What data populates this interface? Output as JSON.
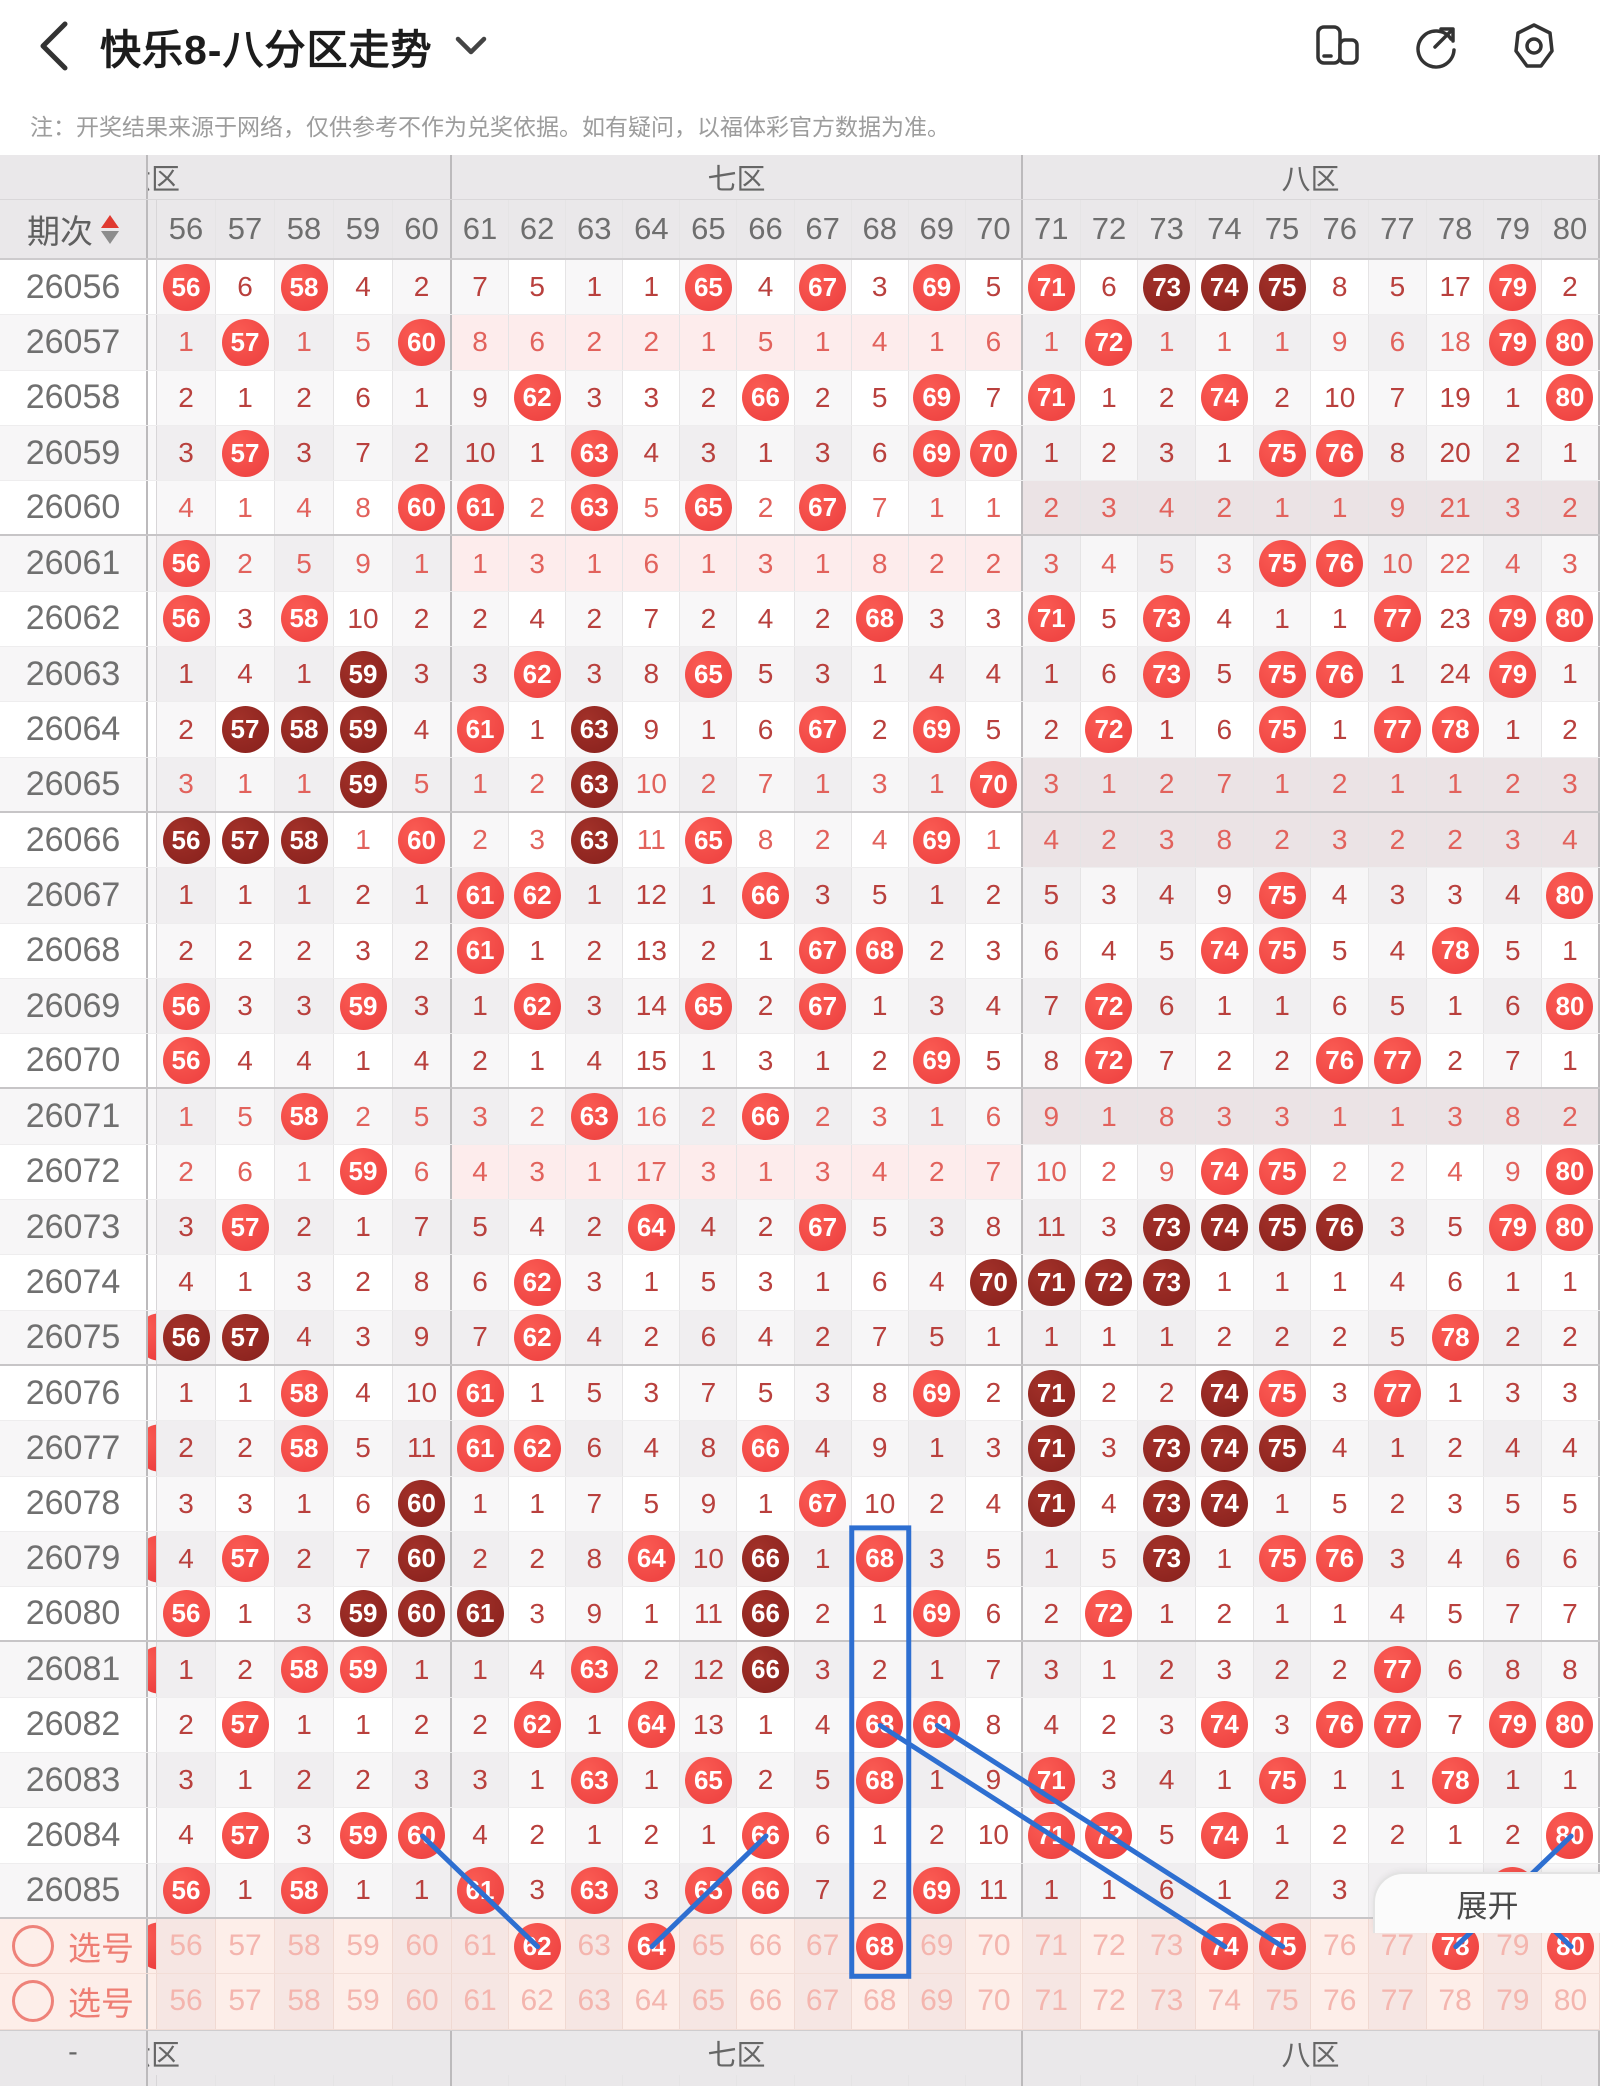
{
  "nav": {
    "title": "快乐8-八分区走势",
    "back_icon": "chevron-left",
    "dropdown_icon": "chevron-down",
    "right_icons": [
      "landscape-rotate-icon",
      "share-icon",
      "settings-icon"
    ]
  },
  "note": "注：开奖结果来源于网络，仅供参考不作为兑奖依据。如有疑问，以福体彩官方数据为准。",
  "colors": {
    "ball_red": "#ec3e3e",
    "ball_dark_red": "#87201c",
    "count_red": "#b9403d",
    "pick_pink": "#ee7d73",
    "annotation_blue": "#2e6fd1",
    "header_gray": "#eae8ea"
  },
  "table": {
    "period_header": "期次",
    "zones": [
      {
        "label": "六区",
        "clipped": true,
        "cols": [
          "56",
          "57",
          "58",
          "59",
          "60"
        ]
      },
      {
        "label": "七区",
        "clipped": false,
        "cols": [
          "61",
          "62",
          "63",
          "64",
          "65",
          "66",
          "67",
          "68",
          "69",
          "70"
        ]
      },
      {
        "label": "八区",
        "clipped": false,
        "cols": [
          "71",
          "72",
          "73",
          "74",
          "75",
          "76",
          "77",
          "78",
          "79",
          "80"
        ]
      }
    ],
    "rows": [
      {
        "id": "26056",
        "tint": null,
        "sliver": false,
        "cells": [
          "B56",
          "6",
          "B58",
          "4",
          "2",
          "7",
          "5",
          "1",
          "1",
          "B65",
          "4",
          "B67",
          "3",
          "B69",
          "5",
          "B71",
          "6",
          "D73",
          "D74",
          "D75",
          "8",
          "5",
          "17",
          "B79",
          "2"
        ]
      },
      {
        "id": "26057",
        "tint": "seven",
        "sliver": false,
        "cells": [
          "1",
          "B57",
          "1",
          "5",
          "B60",
          "8",
          "6",
          "2",
          "2",
          "1",
          "5",
          "1",
          "4",
          "1",
          "6",
          "1",
          "B72",
          "1",
          "1",
          "1",
          "9",
          "6",
          "18",
          "B79",
          "B80"
        ]
      },
      {
        "id": "26058",
        "tint": null,
        "sliver": false,
        "cells": [
          "2",
          "1",
          "2",
          "6",
          "1",
          "9",
          "B62",
          "3",
          "3",
          "2",
          "B66",
          "2",
          "5",
          "B69",
          "7",
          "B71",
          "1",
          "2",
          "B74",
          "2",
          "10",
          "7",
          "19",
          "1",
          "B80"
        ]
      },
      {
        "id": "26059",
        "tint": null,
        "sliver": false,
        "cells": [
          "3",
          "B57",
          "3",
          "7",
          "2",
          "10",
          "1",
          "B63",
          "4",
          "3",
          "1",
          "3",
          "6",
          "B69",
          "B70",
          "1",
          "2",
          "3",
          "1",
          "B75",
          "B76",
          "8",
          "20",
          "2",
          "1"
        ]
      },
      {
        "id": "26060",
        "tint": "eight",
        "sliver": false,
        "cells": [
          "4",
          "1",
          "4",
          "8",
          "B60",
          "B61",
          "2",
          "B63",
          "5",
          "B65",
          "2",
          "B67",
          "7",
          "1",
          "1",
          "2",
          "3",
          "4",
          "2",
          "1",
          "1",
          "9",
          "21",
          "3",
          "2"
        ]
      },
      {
        "id": "26061",
        "tint": "seven",
        "sliver": false,
        "cells": [
          "B56",
          "2",
          "5",
          "9",
          "1",
          "1",
          "3",
          "1",
          "6",
          "1",
          "3",
          "1",
          "8",
          "2",
          "2",
          "3",
          "4",
          "5",
          "3",
          "B75",
          "B76",
          "10",
          "22",
          "4",
          "3"
        ]
      },
      {
        "id": "26062",
        "tint": null,
        "sliver": false,
        "cells": [
          "B56",
          "3",
          "B58",
          "10",
          "2",
          "2",
          "4",
          "2",
          "7",
          "2",
          "4",
          "2",
          "B68",
          "3",
          "3",
          "B71",
          "5",
          "B73",
          "4",
          "1",
          "1",
          "B77",
          "23",
          "B79",
          "B80"
        ]
      },
      {
        "id": "26063",
        "tint": null,
        "sliver": false,
        "cells": [
          "1",
          "4",
          "1",
          "D59",
          "3",
          "3",
          "B62",
          "3",
          "8",
          "B65",
          "5",
          "3",
          "1",
          "4",
          "4",
          "1",
          "6",
          "B73",
          "5",
          "B75",
          "B76",
          "1",
          "24",
          "B79",
          "1"
        ]
      },
      {
        "id": "26064",
        "tint": null,
        "sliver": false,
        "cells": [
          "2",
          "D57",
          "D58",
          "D59",
          "4",
          "B61",
          "1",
          "D63",
          "9",
          "1",
          "6",
          "B67",
          "2",
          "B69",
          "5",
          "2",
          "B72",
          "1",
          "6",
          "B75",
          "1",
          "B77",
          "B78",
          "1",
          "2"
        ]
      },
      {
        "id": "26065",
        "tint": "eight",
        "sliver": false,
        "cells": [
          "3",
          "1",
          "1",
          "D59",
          "5",
          "1",
          "2",
          "D63",
          "10",
          "2",
          "7",
          "1",
          "3",
          "1",
          "B70",
          "3",
          "1",
          "2",
          "7",
          "1",
          "2",
          "1",
          "1",
          "2",
          "3"
        ]
      },
      {
        "id": "26066",
        "tint": "eight",
        "sliver": false,
        "cells": [
          "D56",
          "D57",
          "D58",
          "1",
          "B60",
          "2",
          "3",
          "D63",
          "11",
          "B65",
          "8",
          "2",
          "4",
          "B69",
          "1",
          "4",
          "2",
          "3",
          "8",
          "2",
          "3",
          "2",
          "2",
          "3",
          "4"
        ]
      },
      {
        "id": "26067",
        "tint": null,
        "sliver": false,
        "cells": [
          "1",
          "1",
          "1",
          "2",
          "1",
          "B61",
          "B62",
          "1",
          "12",
          "1",
          "B66",
          "3",
          "5",
          "1",
          "2",
          "5",
          "3",
          "4",
          "9",
          "B75",
          "4",
          "3",
          "3",
          "4",
          "B80"
        ]
      },
      {
        "id": "26068",
        "tint": null,
        "sliver": false,
        "cells": [
          "2",
          "2",
          "2",
          "3",
          "2",
          "B61",
          "1",
          "2",
          "13",
          "2",
          "1",
          "B67",
          "B68",
          "2",
          "3",
          "6",
          "4",
          "5",
          "B74",
          "B75",
          "5",
          "4",
          "B78",
          "5",
          "1"
        ]
      },
      {
        "id": "26069",
        "tint": null,
        "sliver": false,
        "cells": [
          "B56",
          "3",
          "3",
          "B59",
          "3",
          "1",
          "B62",
          "3",
          "14",
          "B65",
          "2",
          "B67",
          "1",
          "3",
          "4",
          "7",
          "B72",
          "6",
          "1",
          "1",
          "6",
          "5",
          "1",
          "6",
          "B80"
        ]
      },
      {
        "id": "26070",
        "tint": null,
        "sliver": false,
        "cells": [
          "B56",
          "4",
          "4",
          "1",
          "4",
          "2",
          "1",
          "4",
          "15",
          "1",
          "3",
          "1",
          "2",
          "B69",
          "5",
          "8",
          "B72",
          "7",
          "2",
          "2",
          "B76",
          "B77",
          "2",
          "7",
          "1"
        ]
      },
      {
        "id": "26071",
        "tint": "eight",
        "sliver": false,
        "cells": [
          "1",
          "5",
          "B58",
          "2",
          "5",
          "3",
          "2",
          "B63",
          "16",
          "2",
          "B66",
          "2",
          "3",
          "1",
          "6",
          "9",
          "1",
          "8",
          "3",
          "3",
          "1",
          "1",
          "3",
          "8",
          "2"
        ]
      },
      {
        "id": "26072",
        "tint": "seven",
        "sliver": false,
        "cells": [
          "2",
          "6",
          "1",
          "B59",
          "6",
          "4",
          "3",
          "1",
          "17",
          "3",
          "1",
          "3",
          "4",
          "2",
          "7",
          "10",
          "2",
          "9",
          "B74",
          "B75",
          "2",
          "2",
          "4",
          "9",
          "B80"
        ]
      },
      {
        "id": "26073",
        "tint": null,
        "sliver": false,
        "cells": [
          "3",
          "B57",
          "2",
          "1",
          "7",
          "5",
          "4",
          "2",
          "B64",
          "4",
          "2",
          "B67",
          "5",
          "3",
          "8",
          "11",
          "3",
          "D73",
          "D74",
          "D75",
          "D76",
          "3",
          "5",
          "B79",
          "B80"
        ]
      },
      {
        "id": "26074",
        "tint": null,
        "sliver": false,
        "cells": [
          "4",
          "1",
          "3",
          "2",
          "8",
          "6",
          "B62",
          "3",
          "1",
          "5",
          "3",
          "1",
          "6",
          "4",
          "D70",
          "D71",
          "D72",
          "D73",
          "1",
          "1",
          "1",
          "4",
          "6",
          "1",
          "1"
        ]
      },
      {
        "id": "26075",
        "tint": null,
        "sliver": true,
        "cells": [
          "D56",
          "D57",
          "4",
          "3",
          "9",
          "7",
          "B62",
          "4",
          "2",
          "6",
          "4",
          "2",
          "7",
          "5",
          "1",
          "1",
          "1",
          "1",
          "2",
          "2",
          "2",
          "5",
          "B78",
          "2",
          "2"
        ]
      },
      {
        "id": "26076",
        "tint": null,
        "sliver": false,
        "cells": [
          "1",
          "1",
          "B58",
          "4",
          "10",
          "B61",
          "1",
          "5",
          "3",
          "7",
          "5",
          "3",
          "8",
          "B69",
          "2",
          "D71",
          "2",
          "2",
          "D74",
          "B75",
          "3",
          "B77",
          "1",
          "3",
          "3"
        ]
      },
      {
        "id": "26077",
        "tint": null,
        "sliver": true,
        "cells": [
          "2",
          "2",
          "B58",
          "5",
          "11",
          "B61",
          "B62",
          "6",
          "4",
          "8",
          "B66",
          "4",
          "9",
          "1",
          "3",
          "D71",
          "3",
          "D73",
          "D74",
          "D75",
          "4",
          "1",
          "2",
          "4",
          "4"
        ]
      },
      {
        "id": "26078",
        "tint": null,
        "sliver": false,
        "cells": [
          "3",
          "3",
          "1",
          "6",
          "D60",
          "1",
          "1",
          "7",
          "5",
          "9",
          "1",
          "B67",
          "10",
          "2",
          "4",
          "D71",
          "4",
          "D73",
          "D74",
          "1",
          "5",
          "2",
          "3",
          "5",
          "5"
        ]
      },
      {
        "id": "26079",
        "tint": null,
        "sliver": true,
        "cells": [
          "4",
          "B57",
          "2",
          "7",
          "D60",
          "2",
          "2",
          "8",
          "B64",
          "10",
          "D66",
          "1",
          "B68",
          "3",
          "5",
          "1",
          "5",
          "D73",
          "1",
          "B75",
          "B76",
          "3",
          "4",
          "6",
          "6"
        ]
      },
      {
        "id": "26080",
        "tint": null,
        "sliver": false,
        "cells": [
          "B56",
          "1",
          "3",
          "D59",
          "D60",
          "D61",
          "3",
          "9",
          "1",
          "11",
          "D66",
          "2",
          "1",
          "B69",
          "6",
          "2",
          "B72",
          "1",
          "2",
          "1",
          "1",
          "4",
          "5",
          "7",
          "7"
        ]
      },
      {
        "id": "26081",
        "tint": null,
        "sliver": true,
        "cells": [
          "1",
          "2",
          "B58",
          "B59",
          "1",
          "1",
          "4",
          "B63",
          "2",
          "12",
          "D66",
          "3",
          "2",
          "1",
          "7",
          "3",
          "1",
          "2",
          "3",
          "2",
          "2",
          "B77",
          "6",
          "8",
          "8"
        ]
      },
      {
        "id": "26082",
        "tint": null,
        "sliver": false,
        "cells": [
          "2",
          "B57",
          "1",
          "1",
          "2",
          "2",
          "B62",
          "1",
          "B64",
          "13",
          "1",
          "4",
          "B68",
          "B69",
          "8",
          "4",
          "2",
          "3",
          "B74",
          "3",
          "B76",
          "B77",
          "7",
          "B79",
          "B80"
        ]
      },
      {
        "id": "26083",
        "tint": null,
        "sliver": false,
        "cells": [
          "3",
          "1",
          "2",
          "2",
          "3",
          "3",
          "1",
          "B63",
          "1",
          "B65",
          "2",
          "5",
          "B68",
          "1",
          "9",
          "B71",
          "3",
          "4",
          "1",
          "B75",
          "1",
          "1",
          "B78",
          "1",
          "1"
        ]
      },
      {
        "id": "26084",
        "tint": null,
        "sliver": false,
        "cells": [
          "4",
          "B57",
          "3",
          "B59",
          "B60",
          "4",
          "2",
          "1",
          "2",
          "1",
          "B66",
          "6",
          "1",
          "2",
          "10",
          "B71",
          "B72",
          "5",
          "B74",
          "1",
          "2",
          "2",
          "1",
          "2",
          "B80"
        ]
      },
      {
        "id": "26085",
        "tint": null,
        "sliver": false,
        "cells": [
          "B56",
          "1",
          "B58",
          "1",
          "1",
          "B61",
          "3",
          "B63",
          "3",
          "B65",
          "B66",
          "7",
          "2",
          "B69",
          "11",
          "1",
          "1",
          "6",
          "1",
          "2",
          "3",
          "3",
          "2",
          "B79",
          "1"
        ]
      }
    ],
    "pick_rows": [
      {
        "label": "选号",
        "sliver": true,
        "cells": [
          "56",
          "57",
          "58",
          "59",
          "60",
          "61",
          "B62",
          "63",
          "B64",
          "65",
          "66",
          "67",
          "B68",
          "69",
          "70",
          "71",
          "72",
          "73",
          "B74",
          "B75",
          "76",
          "77",
          "B78",
          "79",
          "B80"
        ]
      },
      {
        "label": "选号",
        "sliver": false,
        "cells": [
          "56",
          "57",
          "58",
          "59",
          "60",
          "61",
          "62",
          "63",
          "64",
          "65",
          "66",
          "67",
          "68",
          "69",
          "70",
          "71",
          "72",
          "73",
          "74",
          "75",
          "76",
          "77",
          "78",
          "79",
          "80"
        ]
      }
    ],
    "footer_dash": "-",
    "expand_label": "展开"
  },
  "annotations": {
    "rect": {
      "col": "68",
      "from_row": "26079",
      "to_row": "pick1"
    },
    "lines": [
      {
        "from_row": "26084",
        "from_col": "60",
        "to_row": "pick1",
        "to_col": "62"
      },
      {
        "from_row": "26084",
        "from_col": "66",
        "to_row": "pick1",
        "to_col": "64"
      },
      {
        "from_row": "26082",
        "from_col": "68",
        "to_row": "pick1",
        "to_col": "74"
      },
      {
        "from_row": "26082",
        "from_col": "69",
        "to_row": "pick1",
        "to_col": "75"
      },
      {
        "from_row": "26084",
        "from_col": "80",
        "to_row": "pick1",
        "to_col": "78"
      },
      {
        "from_row": "26085",
        "from_col": "79",
        "to_row": "pick1",
        "to_col": "80"
      }
    ]
  }
}
